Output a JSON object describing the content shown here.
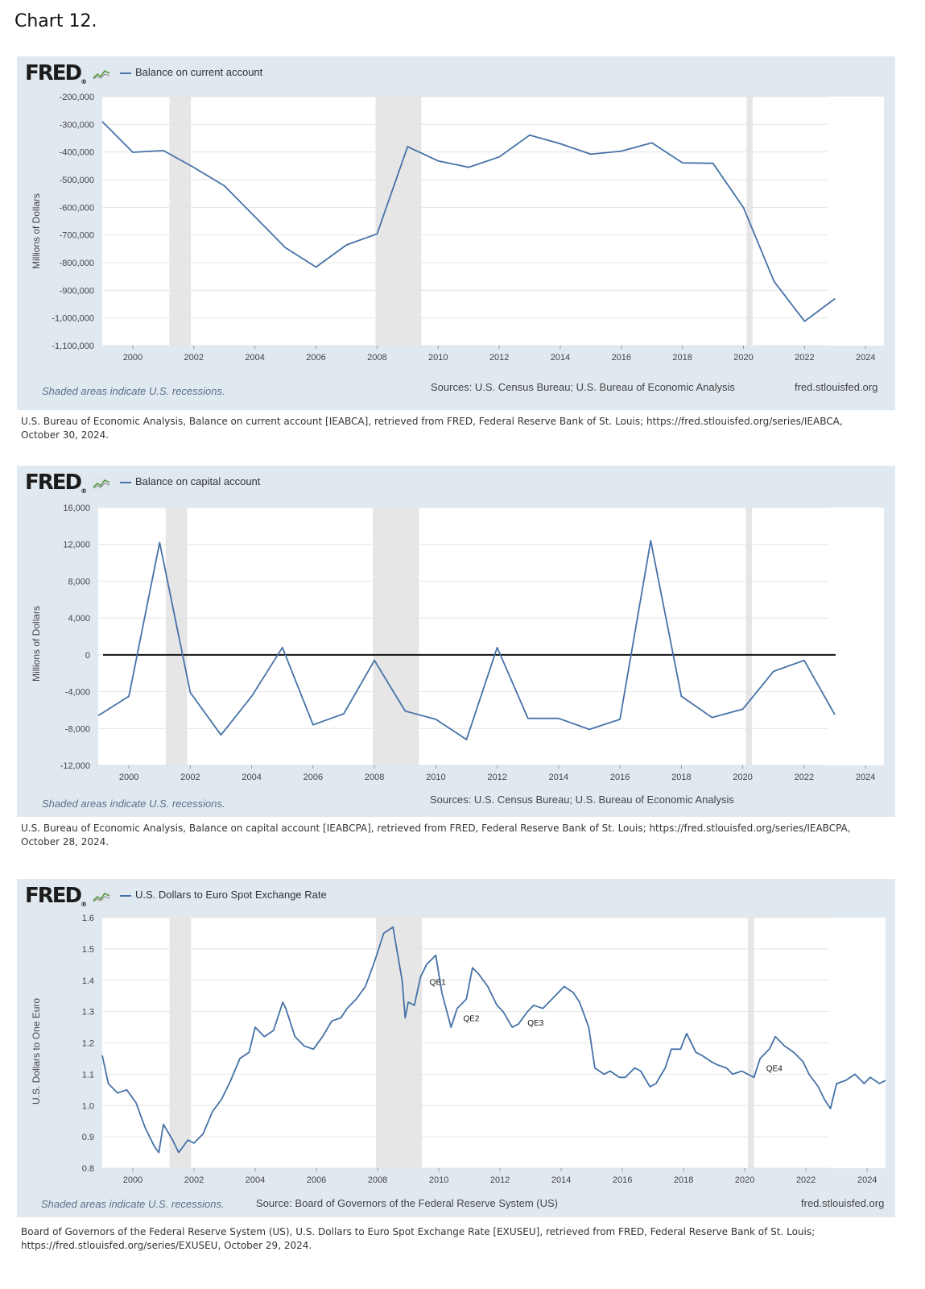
{
  "page_title": "Chart 12.",
  "colors": {
    "line": "#4572a7",
    "panel": "#e1e9f0",
    "recession": "#e6e6e6",
    "zero_line": "#111111"
  },
  "logo": {
    "text": "FRED",
    "icon": "fred-sparkline-icon"
  },
  "recessions": [
    [
      2001.2,
      2001.9
    ],
    [
      2007.95,
      2009.45
    ],
    [
      2020.1,
      2020.3
    ]
  ],
  "panels": [
    {
      "legend": "Balance on current account",
      "ylabel": "Millions of Dollars",
      "recession_note": "Shaded areas indicate U.S. recessions.",
      "source": "Sources: U.S. Census Bureau; U.S. Bureau of Economic Analysis",
      "site": "fred.stlouisfed.org",
      "citation_1": "U.S. Bureau of Economic Analysis, Balance on current account [IEABCA], retrieved from FRED, Federal Reserve Bank of St. Louis; https://fred.stlouisfed.org/series/IEABCA,",
      "citation_2": "October 30, 2024."
    },
    {
      "legend": "Balance on capital account",
      "ylabel": "Millions of Dollars",
      "recession_note": "Shaded areas indicate U.S. recessions.",
      "source": "Sources: U.S. Census Bureau; U.S. Bureau of Economic Analysis",
      "site": "",
      "citation_1": "U.S. Bureau of Economic Analysis, Balance on capital account [IEABCPA], retrieved from FRED, Federal Reserve Bank of St. Louis; https://fred.stlouisfed.org/series/IEABCPA,",
      "citation_2": "October 28, 2024."
    },
    {
      "legend": "U.S. Dollars to Euro Spot Exchange Rate",
      "ylabel": "U.S. Dollars to One Euro",
      "recession_note": "Shaded areas indicate U.S. recessions.",
      "source": "Source: Board of Governors of the Federal Reserve System (US)",
      "site": "fred.stlouisfed.org",
      "citation_1": "Board of Governors of the Federal Reserve System (US), U.S. Dollars to Euro Spot Exchange Rate [EXUSEU], retrieved from FRED, Federal Reserve Bank of St. Louis;",
      "citation_2": "https://fred.stlouisfed.org/series/EXUSEU, October 29, 2024."
    }
  ],
  "chart_data": [
    {
      "type": "line",
      "title": "",
      "series": [
        {
          "name": "Balance on current account"
        }
      ],
      "ylabel": "Millions of Dollars",
      "xlim": [
        1999.0,
        2024.6
      ],
      "ylim": [
        -1100000,
        -200000
      ],
      "xticks": [
        "2000",
        "2002",
        "2004",
        "2006",
        "2008",
        "2010",
        "2012",
        "2014",
        "2016",
        "2018",
        "2020",
        "2022",
        "2024"
      ],
      "yticks": [
        "-200,000",
        "-300,000",
        "-400,000",
        "-500,000",
        "-600,000",
        "-700,000",
        "-800,000",
        "-900,000",
        "-1,000,000",
        "-1,100,000"
      ],
      "x": [
        1999,
        2000,
        2001,
        2002,
        2003,
        2004,
        2005,
        2006,
        2007,
        2008,
        2009,
        2010,
        2011,
        2012,
        2013,
        2014,
        2015,
        2016,
        2017,
        2018,
        2019,
        2020,
        2021,
        2022,
        2023
      ],
      "y": [
        -290000,
        -401000,
        -395000,
        -456000,
        -522000,
        -634000,
        -746000,
        -816000,
        -736000,
        -696000,
        -381000,
        -432000,
        -455000,
        -418000,
        -339000,
        -370000,
        -408000,
        -397000,
        -367000,
        -439000,
        -441000,
        -601000,
        -868000,
        -1012000,
        -930000
      ],
      "zero_line": false
    },
    {
      "type": "line",
      "title": "",
      "series": [
        {
          "name": "Balance on capital account"
        }
      ],
      "ylabel": "Millions of Dollars",
      "xlim": [
        1999.0,
        2024.6
      ],
      "ylim": [
        -12000,
        16000
      ],
      "xticks": [
        "2000",
        "2002",
        "2004",
        "2006",
        "2008",
        "2010",
        "2012",
        "2014",
        "2016",
        "2018",
        "2020",
        "2022",
        "2024"
      ],
      "yticks": [
        "16,000",
        "12,000",
        "8,000",
        "4,000",
        "0",
        "-4,000",
        "-8,000",
        "-12,000"
      ],
      "x": [
        1999,
        2000,
        2001,
        2002,
        2003,
        2004,
        2005,
        2006,
        2007,
        2008,
        2009,
        2010,
        2011,
        2012,
        2013,
        2014,
        2015,
        2016,
        2017,
        2018,
        2019,
        2020,
        2021,
        2022,
        2023
      ],
      "y": [
        -6600,
        -4500,
        12200,
        -4100,
        -8700,
        -4500,
        800,
        -7600,
        -6400,
        -600,
        -6100,
        -7000,
        -9200,
        800,
        -6900,
        -6900,
        -8100,
        -7000,
        12400,
        -4500,
        -6800,
        -5900,
        -1800,
        -600,
        -6500
      ],
      "zero_line": true
    },
    {
      "type": "line",
      "title": "",
      "series": [
        {
          "name": "U.S. Dollars to Euro Spot Exchange Rate"
        }
      ],
      "ylabel": "U.S. Dollars to One Euro",
      "xlim": [
        1999.0,
        2024.6
      ],
      "ylim": [
        0.8,
        1.6
      ],
      "xticks": [
        "2000",
        "2002",
        "2004",
        "2006",
        "2008",
        "2010",
        "2012",
        "2014",
        "2016",
        "2018",
        "2020",
        "2022",
        "2024"
      ],
      "yticks": [
        "1.6",
        "1.5",
        "1.4",
        "1.3",
        "1.2",
        "1.1",
        "1.0",
        "0.9",
        "0.8"
      ],
      "x": [
        1999.0,
        1999.2,
        1999.5,
        1999.8,
        2000.1,
        2000.4,
        2000.7,
        2000.85,
        2001.0,
        2001.3,
        2001.5,
        2001.8,
        2002.0,
        2002.3,
        2002.6,
        2002.9,
        2003.2,
        2003.5,
        2003.8,
        2004.0,
        2004.3,
        2004.6,
        2004.9,
        2005.0,
        2005.3,
        2005.6,
        2005.9,
        2006.2,
        2006.5,
        2006.8,
        2007.0,
        2007.3,
        2007.6,
        2007.9,
        2008.2,
        2008.5,
        2008.8,
        2008.9,
        2009.0,
        2009.2,
        2009.4,
        2009.6,
        2009.9,
        2010.1,
        2010.4,
        2010.6,
        2010.9,
        2011.1,
        2011.3,
        2011.6,
        2011.9,
        2012.1,
        2012.4,
        2012.6,
        2012.9,
        2013.1,
        2013.4,
        2013.6,
        2013.9,
        2014.1,
        2014.4,
        2014.6,
        2014.9,
        2015.1,
        2015.4,
        2015.6,
        2015.9,
        2016.1,
        2016.4,
        2016.6,
        2016.9,
        2017.1,
        2017.4,
        2017.6,
        2017.9,
        2018.1,
        2018.4,
        2018.6,
        2018.9,
        2019.1,
        2019.4,
        2019.6,
        2019.9,
        2020.1,
        2020.3,
        2020.5,
        2020.8,
        2021.0,
        2021.3,
        2021.6,
        2021.9,
        2022.1,
        2022.4,
        2022.6,
        2022.8,
        2023.0,
        2023.3,
        2023.6,
        2023.9,
        2024.1,
        2024.4,
        2024.6
      ],
      "y": [
        1.16,
        1.07,
        1.04,
        1.05,
        1.01,
        0.93,
        0.87,
        0.85,
        0.94,
        0.89,
        0.85,
        0.89,
        0.88,
        0.91,
        0.98,
        1.02,
        1.08,
        1.15,
        1.17,
        1.25,
        1.22,
        1.24,
        1.33,
        1.31,
        1.22,
        1.19,
        1.18,
        1.22,
        1.27,
        1.28,
        1.31,
        1.34,
        1.38,
        1.46,
        1.55,
        1.57,
        1.4,
        1.28,
        1.33,
        1.32,
        1.41,
        1.45,
        1.48,
        1.36,
        1.25,
        1.31,
        1.34,
        1.44,
        1.42,
        1.38,
        1.32,
        1.3,
        1.25,
        1.26,
        1.3,
        1.32,
        1.31,
        1.33,
        1.36,
        1.38,
        1.36,
        1.33,
        1.25,
        1.12,
        1.1,
        1.11,
        1.09,
        1.09,
        1.12,
        1.11,
        1.06,
        1.07,
        1.12,
        1.18,
        1.18,
        1.23,
        1.17,
        1.16,
        1.14,
        1.13,
        1.12,
        1.1,
        1.11,
        1.1,
        1.09,
        1.15,
        1.18,
        1.22,
        1.19,
        1.17,
        1.14,
        1.1,
        1.06,
        1.02,
        0.99,
        1.07,
        1.08,
        1.1,
        1.07,
        1.09,
        1.07,
        1.08
      ],
      "annotations": [
        {
          "label": "QE1",
          "x": 2009.7,
          "y": 1.385
        },
        {
          "label": "QE2",
          "x": 2010.8,
          "y": 1.27
        },
        {
          "label": "QE3",
          "x": 2012.9,
          "y": 1.255
        },
        {
          "label": "QE4",
          "x": 2020.7,
          "y": 1.11
        }
      ],
      "zero_line": false
    }
  ]
}
